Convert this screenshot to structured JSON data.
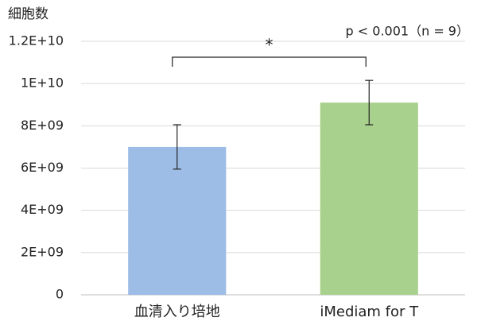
{
  "chart_data": {
    "type": "bar",
    "y_label": "細胞数",
    "annotation": "p < 0.001（n = 9）",
    "significance": "*",
    "categories": [
      "血清入り培地",
      "iMediam for T"
    ],
    "values": [
      7000000000,
      9100000000
    ],
    "errors": [
      1050000000,
      1050000000
    ],
    "colors": [
      "#9dbce6",
      "#a9d18e"
    ],
    "ylim": [
      0,
      12000000000
    ],
    "yticks": [
      0,
      {
        "value": 2000000000,
        "label": "2E+09"
      },
      {
        "value": 4000000000,
        "label": "4E+09"
      },
      {
        "value": 6000000000,
        "label": "6E+09"
      },
      {
        "value": 8000000000,
        "label": "8E+09"
      },
      {
        "value": 10000000000,
        "label": "1E+10"
      },
      {
        "value": 12000000000,
        "label": "1.2E+10"
      }
    ],
    "grid": true
  }
}
